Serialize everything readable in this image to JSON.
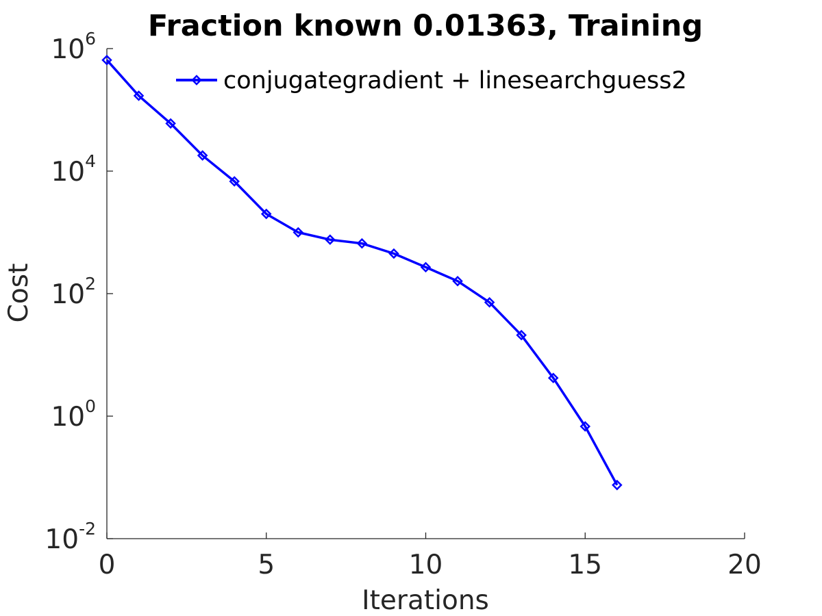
{
  "chart_data": {
    "type": "line",
    "title": "Fraction known 0.01363, Training",
    "xlabel": "Iterations",
    "ylabel": "Cost",
    "xlim": [
      0,
      20
    ],
    "ylim": [
      0.01,
      1000000
    ],
    "yscale": "log",
    "grid": false,
    "legend_position": "top-right",
    "x_ticks": [
      {
        "value": 0,
        "label": "0"
      },
      {
        "value": 5,
        "label": "5"
      },
      {
        "value": 10,
        "label": "10"
      },
      {
        "value": 15,
        "label": "15"
      },
      {
        "value": 20,
        "label": "20"
      }
    ],
    "y_ticks": [
      {
        "value": 0.01,
        "base": "10",
        "exp": "-2"
      },
      {
        "value": 1,
        "base": "10",
        "exp": "0"
      },
      {
        "value": 100,
        "base": "10",
        "exp": "2"
      },
      {
        "value": 10000,
        "base": "10",
        "exp": "4"
      },
      {
        "value": 1000000,
        "base": "10",
        "exp": "6"
      }
    ],
    "series": [
      {
        "name": "conjugategradient + linesearchguess2",
        "color": "#0000ff",
        "marker": "diamond",
        "x": [
          0,
          1,
          2,
          3,
          4,
          5,
          6,
          7,
          8,
          9,
          10,
          11,
          12,
          13,
          14,
          15,
          16
        ],
        "y": [
          650000,
          170000,
          60000,
          18000,
          6800,
          2000,
          1000,
          760,
          660,
          450,
          270,
          160,
          72,
          21,
          4.2,
          0.68,
          0.075
        ]
      }
    ]
  }
}
